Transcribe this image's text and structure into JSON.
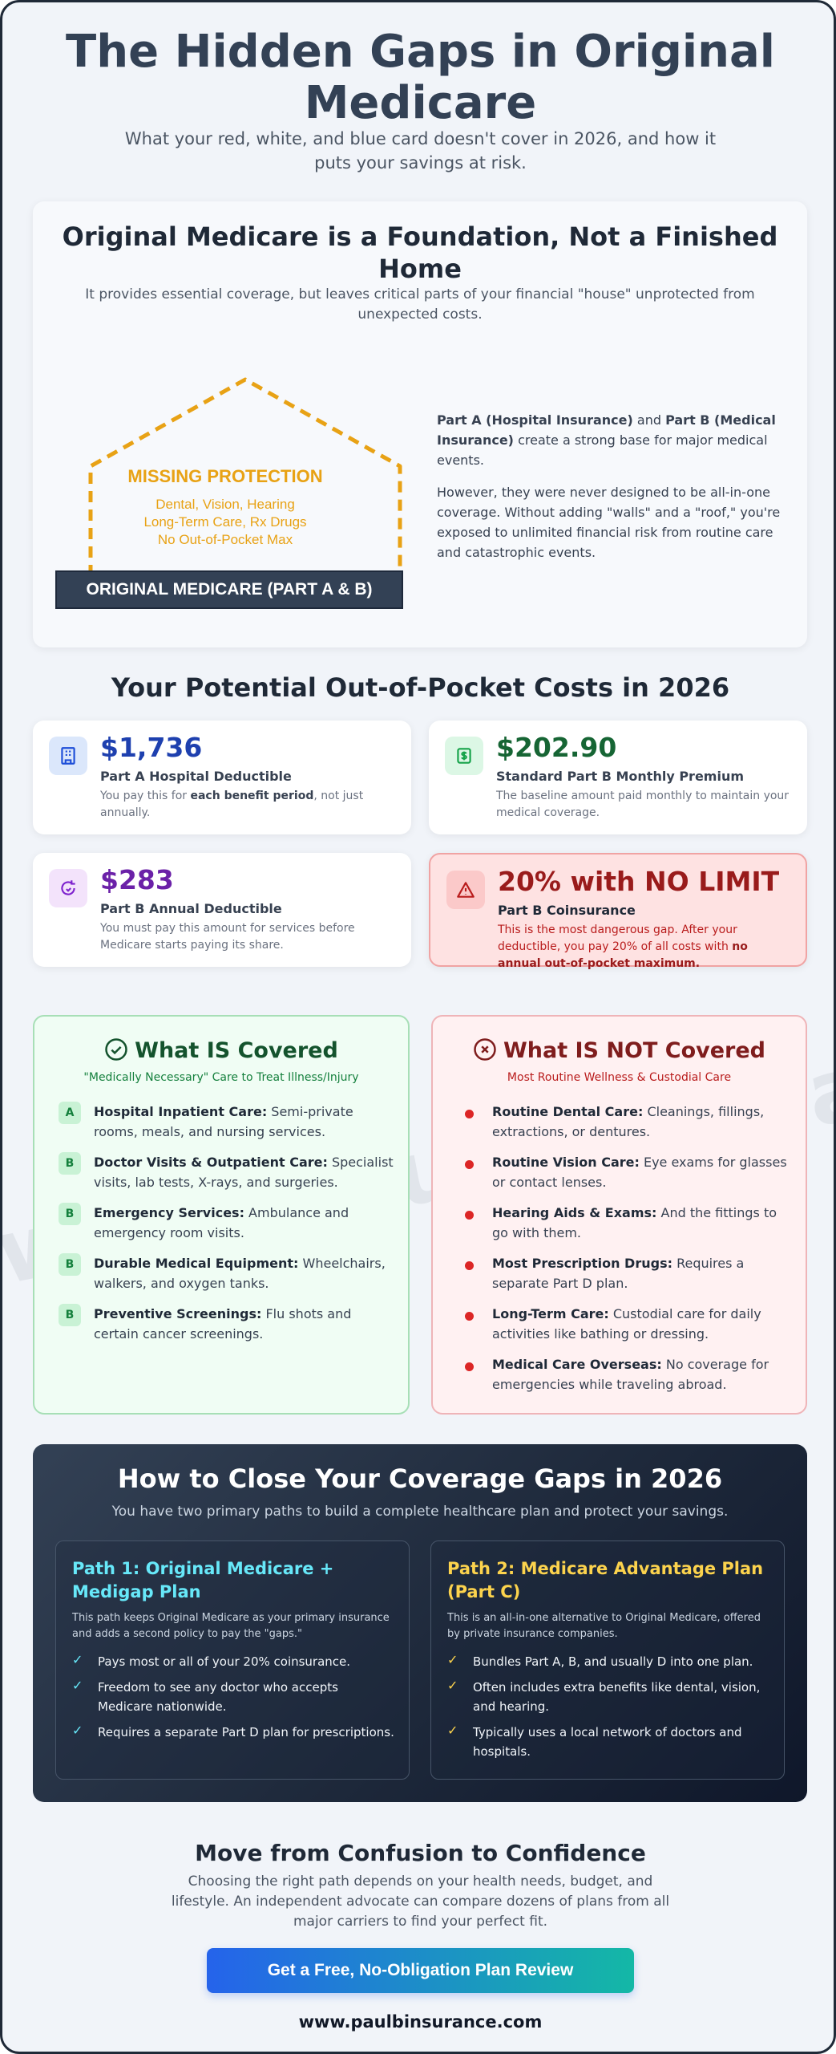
{
  "header": {
    "title": "The Hidden Gaps in Original Medicare",
    "subtitle": "What your red, white, and blue card doesn't cover in 2026, and how it puts your savings at risk."
  },
  "watermark": "www.paulbinsurance.com",
  "foundation": {
    "title": "Original Medicare is a Foundation, Not a Finished Home",
    "subtitle": "It provides essential coverage, but leaves critical parts of your financial \"house\" unprotected from unexpected costs.",
    "house_missing_title": "MISSING PROTECTION",
    "house_missing_lines": [
      "Dental, Vision, Hearing",
      "Long-Term Care, Rx Drugs",
      "No Out-of-Pocket Max"
    ],
    "base_label": "ORIGINAL MEDICARE (PART A & B)",
    "p1_bold_a": "Part A (Hospital Insurance)",
    "p1_and": " and ",
    "p1_bold_b": "Part B (Medical Insurance)",
    "p1_rest": " create a strong base for major medical events.",
    "p2": "However, they were never designed to be all-in-one coverage. Without adding \"walls\" and a \"roof,\" you're exposed to unlimited financial risk from routine care and catastrophic events."
  },
  "costs": {
    "heading": "Your Potential Out-of-Pocket Costs in 2026",
    "cards": [
      {
        "icon": "hospital-icon",
        "value": "$1,736",
        "label": "Part A Hospital Deductible",
        "desc_pre": "You pay this for ",
        "desc_bold": "each benefit period",
        "desc_post": ", not just annually.",
        "color": "#1e40af"
      },
      {
        "icon": "money-icon",
        "value": "$202.90",
        "label": "Standard Part B Monthly Premium",
        "desc": "The baseline amount paid monthly to maintain your medical coverage.",
        "color": "#166534"
      },
      {
        "icon": "rotate-icon",
        "value": "$283",
        "label": "Part B Annual Deductible",
        "desc": "You must pay this amount for services before Medicare starts paying its share.",
        "color": "#6b21a8"
      },
      {
        "icon": "warning-icon",
        "value": "20% with NO LIMIT",
        "label": "Part B Coinsurance",
        "desc_pre": "This is the most dangerous gap. After your deductible, you pay 20% of all costs with ",
        "desc_bold": "no annual out-of-pocket maximum.",
        "color": "#991b1b"
      }
    ]
  },
  "covered": {
    "title": "What IS Covered",
    "subtitle": "\"Medically Necessary\" Care to Treat Illness/Injury",
    "items": [
      {
        "badge": "A",
        "bold": "Hospital Inpatient Care:",
        "text": " Semi-private rooms, meals, and nursing services."
      },
      {
        "badge": "B",
        "bold": "Doctor Visits & Outpatient Care:",
        "text": " Specialist visits, lab tests, X-rays, and surgeries."
      },
      {
        "badge": "B",
        "bold": "Emergency Services:",
        "text": " Ambulance and emergency room visits."
      },
      {
        "badge": "B",
        "bold": "Durable Medical Equipment:",
        "text": " Wheelchairs, walkers, and oxygen tanks."
      },
      {
        "badge": "B",
        "bold": "Preventive Screenings:",
        "text": " Flu shots and certain cancer screenings."
      }
    ]
  },
  "not_covered": {
    "title": "What IS NOT Covered",
    "subtitle": "Most Routine Wellness & Custodial Care",
    "items": [
      {
        "bold": "Routine Dental Care:",
        "text": " Cleanings, fillings, extractions, or dentures."
      },
      {
        "bold": "Routine Vision Care:",
        "text": " Eye exams for glasses or contact lenses."
      },
      {
        "bold": "Hearing Aids & Exams:",
        "text": " And the fittings to go with them."
      },
      {
        "bold": "Most Prescription Drugs:",
        "text": " Requires a separate Part D plan."
      },
      {
        "bold": "Long-Term Care:",
        "text": " Custodial care for daily activities like bathing or dressing."
      },
      {
        "bold": "Medical Care Overseas:",
        "text": " No coverage for emergencies while traveling abroad."
      }
    ]
  },
  "gaps": {
    "title": "How to Close Your Coverage Gaps in 2026",
    "subtitle": "You have two primary paths to build a complete healthcare plan and protect your savings.",
    "paths": [
      {
        "title": "Path 1: Original Medicare + Medigap Plan",
        "desc": "This path keeps Original Medicare as your primary insurance and adds a second policy to pay the \"gaps.\"",
        "color": "#67e8f9",
        "items": [
          "Pays most or all of your 20% coinsurance.",
          "Freedom to see any doctor who accepts Medicare nationwide.",
          "Requires a separate Part D plan for prescriptions."
        ]
      },
      {
        "title": "Path 2: Medicare Advantage Plan (Part C)",
        "desc": "This is an all-in-one alternative to Original Medicare, offered by private insurance companies.",
        "color": "#fcd34d",
        "items": [
          "Bundles Part A, B, and usually D into one plan.",
          "Often includes extra benefits like dental, vision, and hearing.",
          "Typically uses a local network of doctors and hospitals."
        ]
      }
    ]
  },
  "cta": {
    "title": "Move from Confusion to Confidence",
    "desc": "Choosing the right path depends on your health needs, budget, and lifestyle. An independent advocate can compare dozens of plans from all major carriers to find your perfect fit.",
    "button": "Get a Free, No-Obligation Plan Review",
    "url": "www.paulbinsurance.com"
  }
}
